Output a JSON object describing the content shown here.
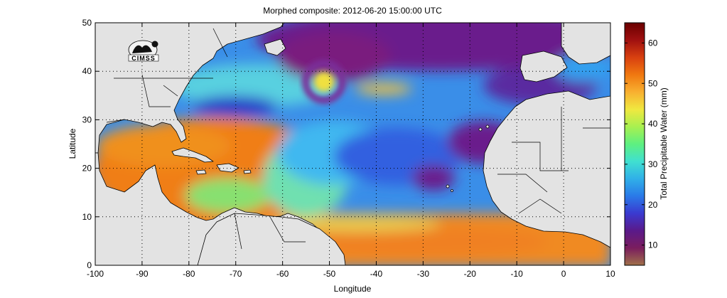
{
  "title": "Morphed composite: 2012-06-20 15:00:00 UTC",
  "logo_text": "CIMSS",
  "map": {
    "xlabel": "Longitude",
    "ylabel": "Latitude",
    "x_ticks": [
      -100,
      -90,
      -80,
      -70,
      -60,
      -50,
      -40,
      -30,
      -20,
      -10,
      0,
      10
    ],
    "y_ticks": [
      0,
      10,
      20,
      30,
      40,
      50
    ],
    "x_range": [
      -100,
      10
    ],
    "y_range": [
      0,
      50
    ],
    "grid": true
  },
  "colorbar": {
    "label": "Total Precipitable Water (mm)",
    "ticks": [
      10,
      20,
      30,
      40,
      50,
      60
    ],
    "range": [
      5,
      65
    ],
    "colors": [
      "#a0704a",
      "#7a1d5e",
      "#5a1a8a",
      "#3a3ad0",
      "#2a7ae8",
      "#30b0e8",
      "#40e0d0",
      "#5ef080",
      "#a8f050",
      "#f0e840",
      "#f8b030",
      "#f07810",
      "#d84010",
      "#a01010",
      "#6a0000"
    ]
  },
  "colors": {
    "land": "#e3e3e3",
    "coast": "#000000"
  }
}
